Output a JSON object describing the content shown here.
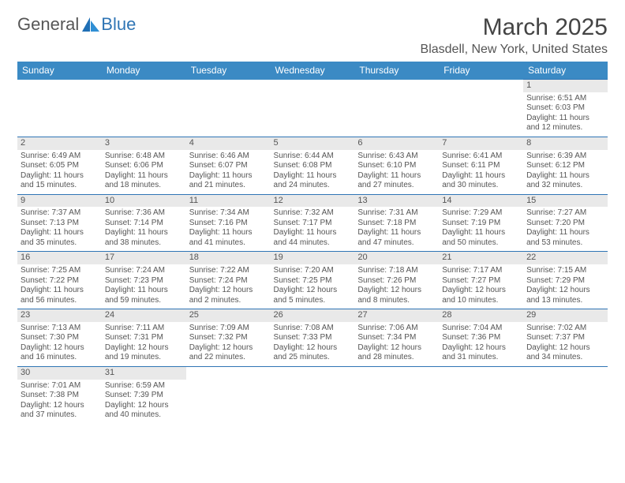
{
  "logo": {
    "text1": "General",
    "text2": "Blue"
  },
  "title": "March 2025",
  "location": "Blasdell, New York, United States",
  "header_bg": "#3b8ac4",
  "days": [
    "Sunday",
    "Monday",
    "Tuesday",
    "Wednesday",
    "Thursday",
    "Friday",
    "Saturday"
  ],
  "weeks": [
    [
      null,
      null,
      null,
      null,
      null,
      null,
      {
        "n": "1",
        "sr": "6:51 AM",
        "ss": "6:03 PM",
        "dl": "11 hours and 12 minutes."
      }
    ],
    [
      {
        "n": "2",
        "sr": "6:49 AM",
        "ss": "6:05 PM",
        "dl": "11 hours and 15 minutes."
      },
      {
        "n": "3",
        "sr": "6:48 AM",
        "ss": "6:06 PM",
        "dl": "11 hours and 18 minutes."
      },
      {
        "n": "4",
        "sr": "6:46 AM",
        "ss": "6:07 PM",
        "dl": "11 hours and 21 minutes."
      },
      {
        "n": "5",
        "sr": "6:44 AM",
        "ss": "6:08 PM",
        "dl": "11 hours and 24 minutes."
      },
      {
        "n": "6",
        "sr": "6:43 AM",
        "ss": "6:10 PM",
        "dl": "11 hours and 27 minutes."
      },
      {
        "n": "7",
        "sr": "6:41 AM",
        "ss": "6:11 PM",
        "dl": "11 hours and 30 minutes."
      },
      {
        "n": "8",
        "sr": "6:39 AM",
        "ss": "6:12 PM",
        "dl": "11 hours and 32 minutes."
      }
    ],
    [
      {
        "n": "9",
        "sr": "7:37 AM",
        "ss": "7:13 PM",
        "dl": "11 hours and 35 minutes."
      },
      {
        "n": "10",
        "sr": "7:36 AM",
        "ss": "7:14 PM",
        "dl": "11 hours and 38 minutes."
      },
      {
        "n": "11",
        "sr": "7:34 AM",
        "ss": "7:16 PM",
        "dl": "11 hours and 41 minutes."
      },
      {
        "n": "12",
        "sr": "7:32 AM",
        "ss": "7:17 PM",
        "dl": "11 hours and 44 minutes."
      },
      {
        "n": "13",
        "sr": "7:31 AM",
        "ss": "7:18 PM",
        "dl": "11 hours and 47 minutes."
      },
      {
        "n": "14",
        "sr": "7:29 AM",
        "ss": "7:19 PM",
        "dl": "11 hours and 50 minutes."
      },
      {
        "n": "15",
        "sr": "7:27 AM",
        "ss": "7:20 PM",
        "dl": "11 hours and 53 minutes."
      }
    ],
    [
      {
        "n": "16",
        "sr": "7:25 AM",
        "ss": "7:22 PM",
        "dl": "11 hours and 56 minutes."
      },
      {
        "n": "17",
        "sr": "7:24 AM",
        "ss": "7:23 PM",
        "dl": "11 hours and 59 minutes."
      },
      {
        "n": "18",
        "sr": "7:22 AM",
        "ss": "7:24 PM",
        "dl": "12 hours and 2 minutes."
      },
      {
        "n": "19",
        "sr": "7:20 AM",
        "ss": "7:25 PM",
        "dl": "12 hours and 5 minutes."
      },
      {
        "n": "20",
        "sr": "7:18 AM",
        "ss": "7:26 PM",
        "dl": "12 hours and 8 minutes."
      },
      {
        "n": "21",
        "sr": "7:17 AM",
        "ss": "7:27 PM",
        "dl": "12 hours and 10 minutes."
      },
      {
        "n": "22",
        "sr": "7:15 AM",
        "ss": "7:29 PM",
        "dl": "12 hours and 13 minutes."
      }
    ],
    [
      {
        "n": "23",
        "sr": "7:13 AM",
        "ss": "7:30 PM",
        "dl": "12 hours and 16 minutes."
      },
      {
        "n": "24",
        "sr": "7:11 AM",
        "ss": "7:31 PM",
        "dl": "12 hours and 19 minutes."
      },
      {
        "n": "25",
        "sr": "7:09 AM",
        "ss": "7:32 PM",
        "dl": "12 hours and 22 minutes."
      },
      {
        "n": "26",
        "sr": "7:08 AM",
        "ss": "7:33 PM",
        "dl": "12 hours and 25 minutes."
      },
      {
        "n": "27",
        "sr": "7:06 AM",
        "ss": "7:34 PM",
        "dl": "12 hours and 28 minutes."
      },
      {
        "n": "28",
        "sr": "7:04 AM",
        "ss": "7:36 PM",
        "dl": "12 hours and 31 minutes."
      },
      {
        "n": "29",
        "sr": "7:02 AM",
        "ss": "7:37 PM",
        "dl": "12 hours and 34 minutes."
      }
    ],
    [
      {
        "n": "30",
        "sr": "7:01 AM",
        "ss": "7:38 PM",
        "dl": "12 hours and 37 minutes."
      },
      {
        "n": "31",
        "sr": "6:59 AM",
        "ss": "7:39 PM",
        "dl": "12 hours and 40 minutes."
      },
      null,
      null,
      null,
      null,
      null
    ]
  ],
  "labels": {
    "sunrise": "Sunrise:",
    "sunset": "Sunset:",
    "daylight": "Daylight:"
  }
}
